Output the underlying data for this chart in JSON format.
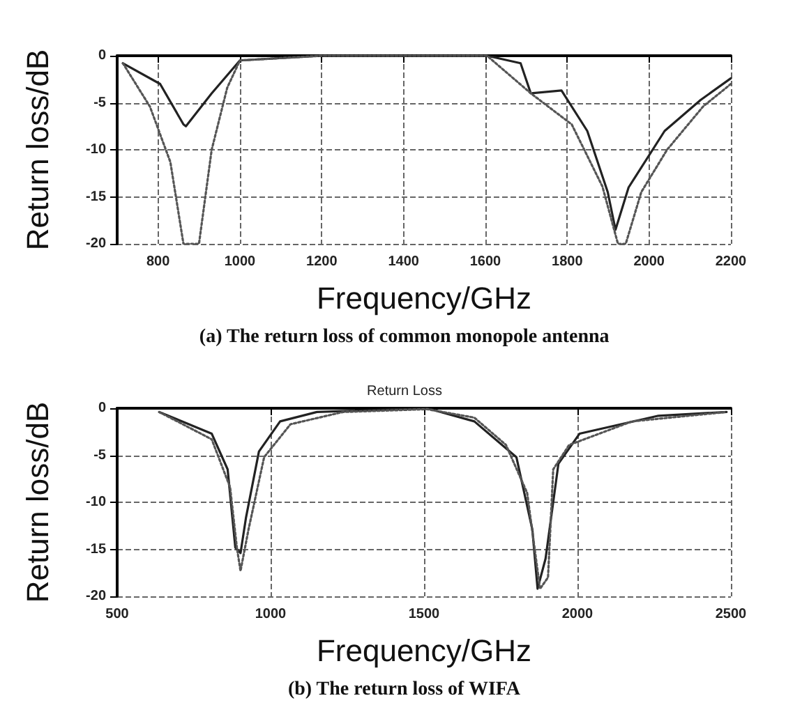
{
  "chart_data": [
    {
      "type": "line",
      "xlabel": "Frequency/GHz",
      "ylabel": "Return loss/dB",
      "annotations": [
        "(a) The return loss of common monopole antenna"
      ],
      "xlim": [
        700,
        2200
      ],
      "xticks": [
        800,
        1000,
        1200,
        1400,
        1600,
        1800,
        2000,
        2200
      ],
      "ylim": [
        -20,
        0
      ],
      "yticks": [
        -20,
        -15,
        -10,
        -5,
        0
      ],
      "grid": true,
      "marker": "none",
      "series": [
        {
          "color": "#222222",
          "line_style": "solid",
          "x": [
            714,
            805,
            862,
            868,
            931,
            1000,
            1200,
            1400,
            1604,
            1686,
            1711,
            1786,
            1849,
            1899,
            1918,
            1950,
            2038,
            2126,
            2200
          ],
          "values": [
            -0.8,
            -3,
            -7.3,
            -7.5,
            -4,
            -0.5,
            0,
            0,
            0,
            -0.8,
            -4,
            -3.7,
            -8,
            -14.5,
            -18.5,
            -14,
            -8,
            -4.7,
            -2.4
          ]
        },
        {
          "color": "#555555",
          "line_style": "dotted",
          "x": [
            714,
            780,
            830,
            862,
            900,
            931,
            969,
            1000,
            1200,
            1400,
            1604,
            1711,
            1811,
            1886,
            1924,
            1943,
            1981,
            2044,
            2132,
            2200
          ],
          "values": [
            -0.8,
            -5.4,
            -11.3,
            -20,
            -20,
            -10,
            -3.4,
            -0.5,
            0,
            0,
            0,
            -4,
            -7.3,
            -13.9,
            -20,
            -20,
            -14.5,
            -10,
            -5.4,
            -3
          ]
        }
      ]
    },
    {
      "type": "line",
      "title": "Return Loss",
      "xlabel": "Frequency/GHz",
      "ylabel": "Return loss/dB",
      "annotations": [
        "(b) The return loss of WIFA"
      ],
      "xlim": [
        500,
        2500
      ],
      "xticks": [
        500,
        1000,
        1500,
        2000,
        2500
      ],
      "ylim": [
        -20,
        0
      ],
      "yticks": [
        -20,
        -15,
        -10,
        -5,
        0
      ],
      "grid": true,
      "marker": "none",
      "series": [
        {
          "color": "#222222",
          "line_style": "solid",
          "x": [
            637,
            808,
            860,
            885,
            902,
            920,
            962,
            1031,
            1151,
            1510,
            1664,
            1801,
            1853,
            1870,
            1896,
            1938,
            2007,
            2264,
            2486
          ],
          "values": [
            -0.4,
            -2.7,
            -6.5,
            -14.8,
            -15.4,
            -11.6,
            -4.6,
            -1.4,
            -0.4,
            0,
            -1.4,
            -5.2,
            -12.9,
            -19.2,
            -16,
            -5.9,
            -2.7,
            -0.8,
            -0.4
          ]
        },
        {
          "color": "#555555",
          "line_style": "dotted",
          "x": [
            637,
            808,
            868,
            890,
            902,
            928,
            979,
            1065,
            1236,
            1510,
            1664,
            1767,
            1836,
            1878,
            1904,
            1921,
            1973,
            2178,
            2486
          ],
          "values": [
            -0.4,
            -3.3,
            -8.4,
            -14.8,
            -17.3,
            -12.9,
            -5.2,
            -1.7,
            -0.4,
            -0.1,
            -1,
            -3.9,
            -9,
            -19.2,
            -18,
            -6.5,
            -3.9,
            -1.4,
            -0.4
          ]
        }
      ]
    }
  ]
}
